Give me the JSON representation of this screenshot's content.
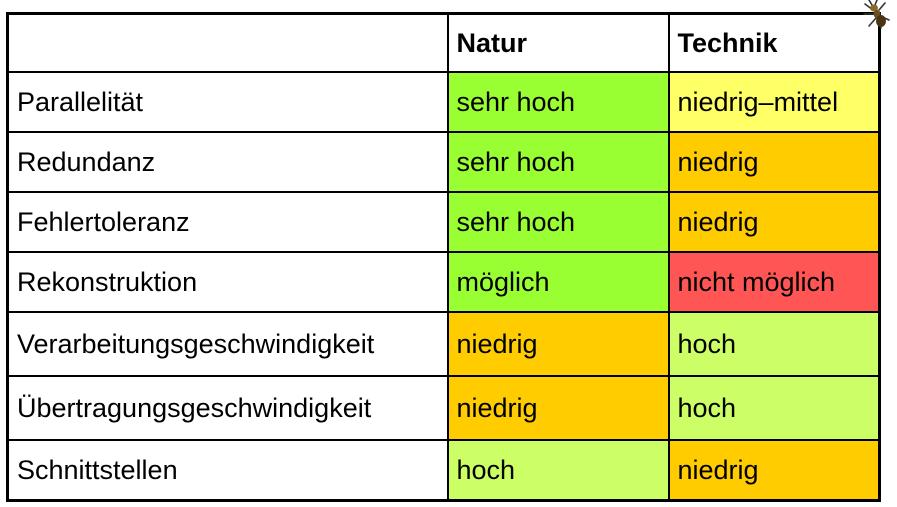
{
  "colors": {
    "sehr_hoch": "#99ff33",
    "moeglich": "#99ff33",
    "hoch": "#ccff66",
    "niedrig": "#ffcc00",
    "niedrig_mittel": "#ffff66",
    "nicht_moeglich": "#ff5555",
    "header": "#ffffff"
  },
  "table": {
    "headers": [
      "",
      "Natur",
      "Technik"
    ],
    "rows": [
      {
        "label": "Parallelität",
        "natur": "sehr hoch",
        "technik": "niedrig–mittel"
      },
      {
        "label": "Redundanz",
        "natur": "sehr hoch",
        "technik": "niedrig"
      },
      {
        "label": "Fehlertoleranz",
        "natur": "sehr hoch",
        "technik": "niedrig"
      },
      {
        "label": "Rekonstruktion",
        "natur": "möglich",
        "technik": "nicht möglich"
      },
      {
        "label": "Verarbeitungsgeschwindigkeit",
        "natur": "niedrig",
        "technik": "hoch"
      },
      {
        "label": "Übertragungsgeschwindigkeit",
        "natur": "niedrig",
        "technik": "hoch"
      },
      {
        "label": "Schnittstellen",
        "natur": "hoch",
        "technik": "niedrig"
      }
    ]
  },
  "decoration": {
    "icon": "ant-icon"
  }
}
